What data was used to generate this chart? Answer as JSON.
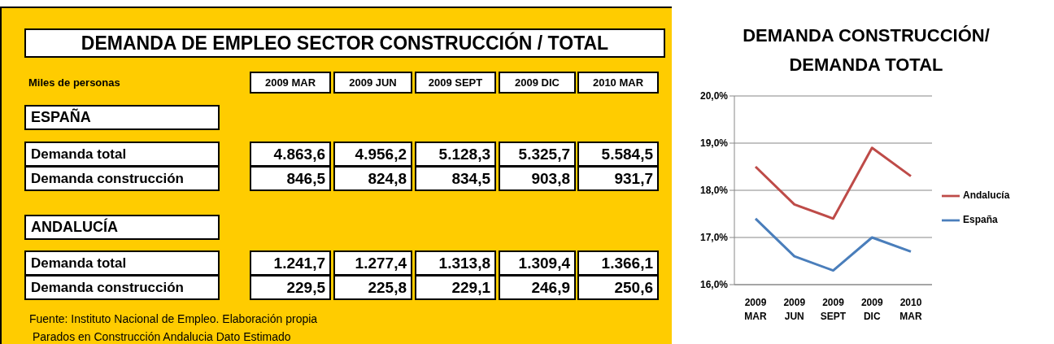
{
  "chart_data": [
    {
      "type": "other",
      "title": "DEMANDA DE EMPLEO SECTOR CONSTRUCCIÓN / TOTAL",
      "subtitle": "Miles de personas",
      "categories": [
        "2009 MAR",
        "2009 JUN",
        "2009 SEPT",
        "2009 DIC",
        "2010 MAR"
      ],
      "series": [
        {
          "name": "Demanda total",
          "values": [
            4863.6,
            4956.2,
            5128.3,
            5325.7,
            5584.5
          ],
          "value_labels": [
            "4.863,6",
            "4.956,2",
            "5.128,3",
            "5.325,7",
            "5.584,5"
          ]
        },
        {
          "name": "Demanda construcción",
          "values": [
            846.5,
            824.8,
            834.5,
            903.8,
            931.7
          ],
          "value_labels": [
            "846,5",
            "824,8",
            "834,5",
            "903,8",
            "931,7"
          ]
        },
        {
          "name": "Demanda total",
          "values": [
            1241.7,
            1277.4,
            1313.8,
            1309.4,
            1366.1
          ],
          "value_labels": [
            "1.241,7",
            "1.277,4",
            "1.313,8",
            "1.309,4",
            "1.366,1"
          ]
        },
        {
          "name": "Demanda construcción",
          "values": [
            229.5,
            225.8,
            229.1,
            246.9,
            250.6
          ],
          "value_labels": [
            "229,5",
            "225,8",
            "229,1",
            "246,9",
            "250,6"
          ]
        }
      ],
      "annotations": [
        "ESPAÑA",
        "ANDALUCÍA",
        "Fuente: Instituto Nacional de Empleo. Elaboración propia",
        "Parados en Construcción Andalucia Dato Estimado"
      ]
    },
    {
      "type": "line",
      "title": "DEMANDA CONSTRUCCIÓN/ DEMANDA TOTAL",
      "categories": [
        "2009 MAR",
        "2009 JUN",
        "2009 SEPT",
        "2009 DIC",
        "2010 MAR"
      ],
      "series": [
        {
          "name": "España",
          "color": "#4a7ebb",
          "values": [
            17.4,
            16.6,
            16.3,
            17.0,
            16.7
          ]
        },
        {
          "name": "Andalucía",
          "color": "#be4b48",
          "values": [
            18.5,
            17.7,
            17.4,
            18.9,
            18.3
          ]
        }
      ],
      "ylim": [
        16,
        20
      ],
      "yticks": [
        {
          "value": 16,
          "label": "16,0%"
        },
        {
          "value": 17,
          "label": "17,0%"
        },
        {
          "value": 18,
          "label": "18,0%"
        },
        {
          "value": 19,
          "label": "19,0%"
        },
        {
          "value": 20,
          "label": "20,0%"
        }
      ],
      "grid": "y",
      "legend": "right",
      "marker": "none",
      "line_style": "solid"
    }
  ]
}
